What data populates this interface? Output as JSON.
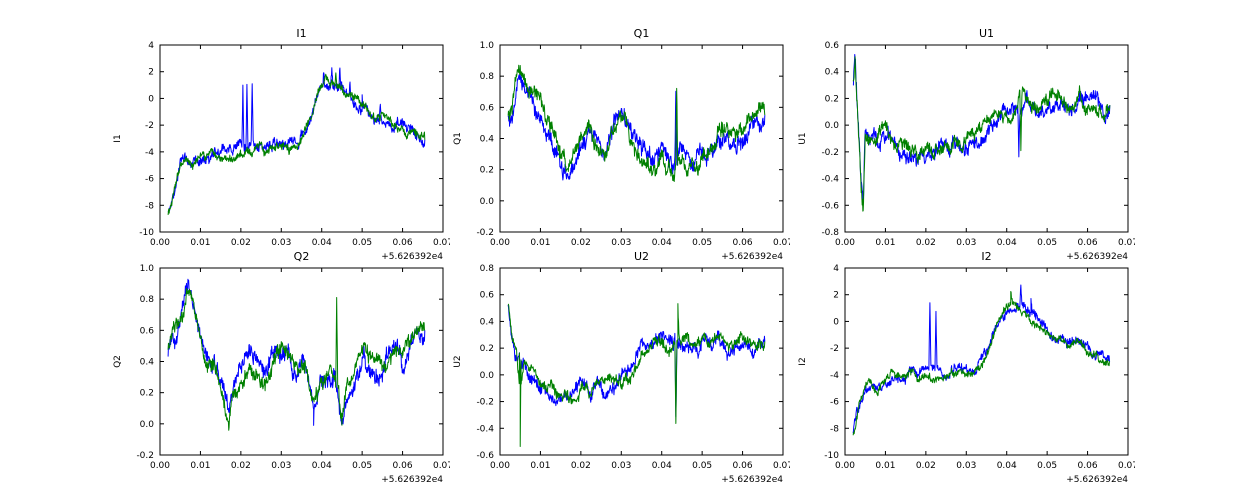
{
  "figure": {
    "background": "#ffffff"
  },
  "colors": {
    "blue": "#0000ff",
    "green": "#008000",
    "axis": "#000000",
    "text": "#000000"
  },
  "chart_data": {
    "note": "six line subplots, two overlaid noisy series (blue under, green over), shared x axis 0.00-0.07 with offset +5.626392e4"
  },
  "charts": [
    {
      "type": "line",
      "title": "I1",
      "ylabel": "I1",
      "xlabel": "",
      "x_offset_label": "+5.626392e4",
      "xlim": [
        0,
        0.07
      ],
      "ylim": [
        -10,
        4
      ],
      "grid": false,
      "legend": null,
      "xticks": {
        "values": [
          0,
          0.01,
          0.02,
          0.03,
          0.04,
          0.05,
          0.06,
          0.07
        ],
        "labels": [
          "0.00",
          "0.01",
          "0.02",
          "0.03",
          "0.04",
          "0.05",
          "0.06",
          "0.07"
        ]
      },
      "yticks": {
        "values": [
          -10,
          -8,
          -6,
          -4,
          -2,
          0,
          2,
          4
        ],
        "labels": [
          "-10",
          "-8",
          "-6",
          "-4",
          "-2",
          "0",
          "2",
          "4"
        ]
      },
      "anchors": {
        "x": [
          0.002,
          0.003,
          0.004,
          0.005,
          0.006,
          0.008,
          0.01,
          0.012,
          0.014,
          0.016,
          0.018,
          0.02,
          0.022,
          0.024,
          0.026,
          0.028,
          0.03,
          0.032,
          0.034,
          0.036,
          0.038,
          0.04,
          0.041,
          0.042,
          0.044,
          0.046,
          0.048,
          0.05,
          0.052,
          0.054,
          0.056,
          0.058,
          0.06,
          0.062,
          0.064,
          0.0655
        ],
        "y": [
          -8.5,
          -7.3,
          -6.2,
          -5.2,
          -4.8,
          -5.3,
          -4.6,
          -4.2,
          -4.5,
          -4.0,
          -4.2,
          -3.8,
          -4.0,
          -3.8,
          -4.0,
          -3.7,
          -3.8,
          -3.6,
          -3.2,
          -2.0,
          -0.5,
          0.8,
          1.2,
          0.9,
          0.6,
          0.2,
          -0.2,
          -0.6,
          -1.0,
          -1.4,
          -1.7,
          -2.0,
          -2.3,
          -2.6,
          -2.9,
          -3.1
        ]
      },
      "series": [
        {
          "name": "series-blue",
          "color": "blue",
          "noise": 0.55,
          "spikes": [
            [
              0.0205,
              0.5
            ],
            [
              0.0215,
              1.0
            ],
            [
              0.0228,
              0.7
            ],
            [
              0.0405,
              2.4
            ],
            [
              0.0425,
              2.3
            ],
            [
              0.0445,
              2.0
            ],
            [
              0.047,
              1.2
            ],
            [
              0.05,
              0.3
            ],
            [
              0.0545,
              -0.2
            ]
          ]
        },
        {
          "name": "series-green",
          "color": "green",
          "noise": 0.45,
          "spikes": [
            [
              0.0435,
              1.9
            ]
          ]
        }
      ]
    },
    {
      "type": "line",
      "title": "Q1",
      "ylabel": "Q1",
      "xlabel": "",
      "x_offset_label": "+5.626392e4",
      "xlim": [
        0,
        0.07
      ],
      "ylim": [
        -0.2,
        1.0
      ],
      "grid": false,
      "legend": null,
      "xticks": {
        "values": [
          0,
          0.01,
          0.02,
          0.03,
          0.04,
          0.05,
          0.06,
          0.07
        ],
        "labels": [
          "0.00",
          "0.01",
          "0.02",
          "0.03",
          "0.04",
          "0.05",
          "0.06",
          "0.07"
        ]
      },
      "yticks": {
        "values": [
          -0.2,
          0,
          0.2,
          0.4,
          0.6,
          0.8,
          1.0
        ],
        "labels": [
          "-0.2",
          "0.0",
          "0.2",
          "0.4",
          "0.6",
          "0.8",
          "1.0"
        ]
      },
      "anchors": {
        "x": [
          0.002,
          0.003,
          0.004,
          0.005,
          0.006,
          0.007,
          0.008,
          0.01,
          0.012,
          0.014,
          0.016,
          0.017,
          0.018,
          0.02,
          0.022,
          0.024,
          0.026,
          0.028,
          0.03,
          0.032,
          0.034,
          0.036,
          0.038,
          0.04,
          0.042,
          0.043,
          0.044,
          0.046,
          0.048,
          0.05,
          0.052,
          0.054,
          0.056,
          0.058,
          0.06,
          0.062,
          0.064,
          0.0655
        ],
        "y": [
          0.55,
          0.6,
          0.75,
          0.85,
          0.8,
          0.72,
          0.65,
          0.6,
          0.45,
          0.35,
          0.22,
          0.15,
          0.25,
          0.35,
          0.45,
          0.4,
          0.35,
          0.45,
          0.5,
          0.45,
          0.35,
          0.3,
          0.25,
          0.3,
          0.2,
          0.15,
          0.3,
          0.25,
          0.2,
          0.3,
          0.35,
          0.4,
          0.45,
          0.4,
          0.45,
          0.5,
          0.55,
          0.55
        ]
      },
      "series": [
        {
          "name": "series-blue",
          "color": "blue",
          "noise": 0.08,
          "spikes": [
            [
              0.0435,
              0.7
            ]
          ]
        },
        {
          "name": "series-green",
          "color": "green",
          "noise": 0.07,
          "spikes": [
            [
              0.0437,
              0.75
            ]
          ]
        }
      ]
    },
    {
      "type": "line",
      "title": "U1",
      "ylabel": "U1",
      "xlabel": "",
      "x_offset_label": "+5.626392e4",
      "xlim": [
        0,
        0.07
      ],
      "ylim": [
        -0.8,
        0.6
      ],
      "grid": false,
      "legend": null,
      "xticks": {
        "values": [
          0,
          0.01,
          0.02,
          0.03,
          0.04,
          0.05,
          0.06,
          0.07
        ],
        "labels": [
          "0.00",
          "0.01",
          "0.02",
          "0.03",
          "0.04",
          "0.05",
          "0.06",
          "0.07"
        ]
      },
      "yticks": {
        "values": [
          -0.8,
          -0.6,
          -0.4,
          -0.2,
          0,
          0.2,
          0.4,
          0.6
        ],
        "labels": [
          "-0.8",
          "-0.6",
          "-0.4",
          "-0.2",
          "0.0",
          "0.2",
          "0.4",
          "0.6"
        ]
      },
      "anchors": {
        "x": [
          0.002,
          0.0025,
          0.003,
          0.0035,
          0.004,
          0.0045,
          0.005,
          0.006,
          0.008,
          0.01,
          0.012,
          0.014,
          0.016,
          0.018,
          0.02,
          0.022,
          0.024,
          0.026,
          0.028,
          0.03,
          0.032,
          0.034,
          0.036,
          0.038,
          0.04,
          0.042,
          0.044,
          0.046,
          0.048,
          0.05,
          0.052,
          0.054,
          0.056,
          0.058,
          0.06,
          0.062,
          0.064,
          0.0655
        ],
        "y": [
          0.3,
          0.45,
          0.1,
          -0.2,
          -0.5,
          -0.65,
          -0.05,
          -0.05,
          -0.1,
          -0.05,
          -0.15,
          -0.2,
          -0.2,
          -0.25,
          -0.2,
          -0.25,
          -0.2,
          -0.2,
          -0.15,
          -0.15,
          -0.1,
          -0.05,
          0.0,
          0.1,
          0.05,
          0.1,
          0.2,
          0.15,
          0.1,
          0.15,
          0.2,
          0.15,
          0.15,
          0.2,
          0.15,
          0.15,
          0.1,
          0.15
        ]
      },
      "series": [
        {
          "name": "series-blue",
          "color": "blue",
          "noise": 0.08,
          "spikes": [
            [
              0.043,
              -0.2
            ]
          ]
        },
        {
          "name": "series-green",
          "color": "green",
          "noise": 0.07,
          "spikes": [
            [
              0.0435,
              -0.25
            ]
          ]
        }
      ]
    },
    {
      "type": "line",
      "title": "Q2",
      "ylabel": "Q2",
      "xlabel": "",
      "x_offset_label": "+5.626392e4",
      "xlim": [
        0,
        0.07
      ],
      "ylim": [
        -0.2,
        1.0
      ],
      "grid": false,
      "legend": null,
      "xticks": {
        "values": [
          0,
          0.01,
          0.02,
          0.03,
          0.04,
          0.05,
          0.06,
          0.07
        ],
        "labels": [
          "0.00",
          "0.01",
          "0.02",
          "0.03",
          "0.04",
          "0.05",
          "0.06",
          "0.07"
        ]
      },
      "yticks": {
        "values": [
          -0.2,
          0,
          0.2,
          0.4,
          0.6,
          0.8,
          1.0
        ],
        "labels": [
          "-0.2",
          "0.0",
          "0.2",
          "0.4",
          "0.6",
          "0.8",
          "1.0"
        ]
      },
      "anchors": {
        "x": [
          0.002,
          0.003,
          0.004,
          0.005,
          0.006,
          0.007,
          0.008,
          0.009,
          0.01,
          0.012,
          0.014,
          0.016,
          0.017,
          0.018,
          0.02,
          0.022,
          0.024,
          0.026,
          0.028,
          0.03,
          0.032,
          0.034,
          0.036,
          0.038,
          0.04,
          0.042,
          0.0435,
          0.045,
          0.046,
          0.048,
          0.05,
          0.052,
          0.054,
          0.056,
          0.058,
          0.06,
          0.062,
          0.064,
          0.0655
        ],
        "y": [
          0.45,
          0.55,
          0.6,
          0.65,
          0.75,
          0.85,
          0.75,
          0.65,
          0.55,
          0.4,
          0.35,
          0.15,
          0.05,
          0.2,
          0.3,
          0.4,
          0.35,
          0.3,
          0.4,
          0.45,
          0.4,
          0.3,
          0.35,
          0.15,
          0.3,
          0.35,
          0.3,
          0.05,
          0.2,
          0.3,
          0.45,
          0.4,
          0.35,
          0.4,
          0.45,
          0.4,
          0.5,
          0.55,
          0.6
        ]
      },
      "series": [
        {
          "name": "series-blue",
          "color": "blue",
          "noise": 0.08,
          "spikes": [
            [
              0.038,
              0.05
            ]
          ]
        },
        {
          "name": "series-green",
          "color": "green",
          "noise": 0.07,
          "spikes": [
            [
              0.0437,
              0.8
            ]
          ]
        }
      ]
    },
    {
      "type": "line",
      "title": "U2",
      "ylabel": "U2",
      "xlabel": "",
      "x_offset_label": "+5.626392e4",
      "xlim": [
        0,
        0.07
      ],
      "ylim": [
        -0.6,
        0.8
      ],
      "grid": false,
      "legend": null,
      "xticks": {
        "values": [
          0,
          0.01,
          0.02,
          0.03,
          0.04,
          0.05,
          0.06,
          0.07
        ],
        "labels": [
          "0.00",
          "0.01",
          "0.02",
          "0.03",
          "0.04",
          "0.05",
          "0.06",
          "0.07"
        ]
      },
      "yticks": {
        "values": [
          -0.6,
          -0.4,
          -0.2,
          0,
          0.2,
          0.4,
          0.6,
          0.8
        ],
        "labels": [
          "-0.6",
          "-0.4",
          "-0.2",
          "0.0",
          "0.2",
          "0.4",
          "0.6",
          "0.8"
        ]
      },
      "anchors": {
        "x": [
          0.002,
          0.003,
          0.004,
          0.0048,
          0.005,
          0.0052,
          0.006,
          0.008,
          0.01,
          0.012,
          0.014,
          0.016,
          0.018,
          0.02,
          0.022,
          0.024,
          0.026,
          0.028,
          0.03,
          0.032,
          0.034,
          0.035,
          0.036,
          0.038,
          0.04,
          0.042,
          0.044,
          0.046,
          0.048,
          0.05,
          0.052,
          0.054,
          0.056,
          0.058,
          0.06,
          0.062,
          0.064,
          0.0655
        ],
        "y": [
          0.55,
          0.3,
          0.15,
          0.1,
          -0.1,
          0.05,
          0.05,
          0.0,
          -0.05,
          -0.1,
          -0.15,
          -0.1,
          -0.15,
          -0.1,
          -0.15,
          -0.1,
          -0.1,
          -0.05,
          -0.05,
          0.0,
          0.1,
          0.2,
          0.15,
          0.2,
          0.25,
          0.2,
          0.3,
          0.25,
          0.2,
          0.25,
          0.2,
          0.25,
          0.2,
          0.25,
          0.25,
          0.2,
          0.25,
          0.25
        ]
      },
      "series": [
        {
          "name": "series-blue",
          "color": "blue",
          "noise": 0.07,
          "spikes": [
            [
              0.0435,
              -0.3
            ]
          ]
        },
        {
          "name": "series-green",
          "color": "green",
          "noise": 0.06,
          "spikes": [
            [
              0.005,
              -0.55
            ],
            [
              0.0435,
              -0.35
            ],
            [
              0.044,
              0.55
            ]
          ]
        }
      ]
    },
    {
      "type": "line",
      "title": "I2",
      "ylabel": "I2",
      "xlabel": "",
      "x_offset_label": "+5.626392e4",
      "xlim": [
        0,
        0.07
      ],
      "ylim": [
        -10,
        4
      ],
      "grid": false,
      "legend": null,
      "xticks": {
        "values": [
          0,
          0.01,
          0.02,
          0.03,
          0.04,
          0.05,
          0.06,
          0.07
        ],
        "labels": [
          "0.00",
          "0.01",
          "0.02",
          "0.03",
          "0.04",
          "0.05",
          "0.06",
          "0.07"
        ]
      },
      "yticks": {
        "values": [
          -10,
          -8,
          -6,
          -4,
          -2,
          0,
          2,
          4
        ],
        "labels": [
          "-10",
          "-8",
          "-6",
          "-4",
          "-2",
          "0",
          "2",
          "4"
        ]
      },
      "anchors": {
        "x": [
          0.002,
          0.003,
          0.004,
          0.005,
          0.006,
          0.008,
          0.01,
          0.012,
          0.014,
          0.016,
          0.018,
          0.02,
          0.022,
          0.024,
          0.026,
          0.028,
          0.03,
          0.032,
          0.034,
          0.036,
          0.038,
          0.04,
          0.041,
          0.042,
          0.044,
          0.046,
          0.048,
          0.05,
          0.052,
          0.054,
          0.056,
          0.058,
          0.06,
          0.062,
          0.064,
          0.0655
        ],
        "y": [
          -8.5,
          -7.0,
          -6.0,
          -5.0,
          -4.6,
          -5.0,
          -4.4,
          -4.0,
          -4.3,
          -3.9,
          -4.1,
          -3.9,
          -4.0,
          -3.9,
          -4.0,
          -3.8,
          -3.9,
          -3.5,
          -3.0,
          -1.8,
          -0.3,
          0.9,
          1.3,
          1.0,
          0.8,
          0.3,
          -0.1,
          -0.5,
          -0.9,
          -1.3,
          -1.6,
          -1.9,
          -2.2,
          -2.5,
          -2.8,
          -3.0
        ]
      },
      "series": [
        {
          "name": "series-blue",
          "color": "blue",
          "noise": 0.5,
          "spikes": [
            [
              0.021,
              1.0
            ],
            [
              0.0225,
              0.4
            ],
            [
              0.0435,
              2.3
            ],
            [
              0.046,
              1.5
            ]
          ]
        },
        {
          "name": "series-green",
          "color": "green",
          "noise": 0.42,
          "spikes": [
            [
              0.041,
              2.2
            ]
          ]
        }
      ]
    }
  ]
}
